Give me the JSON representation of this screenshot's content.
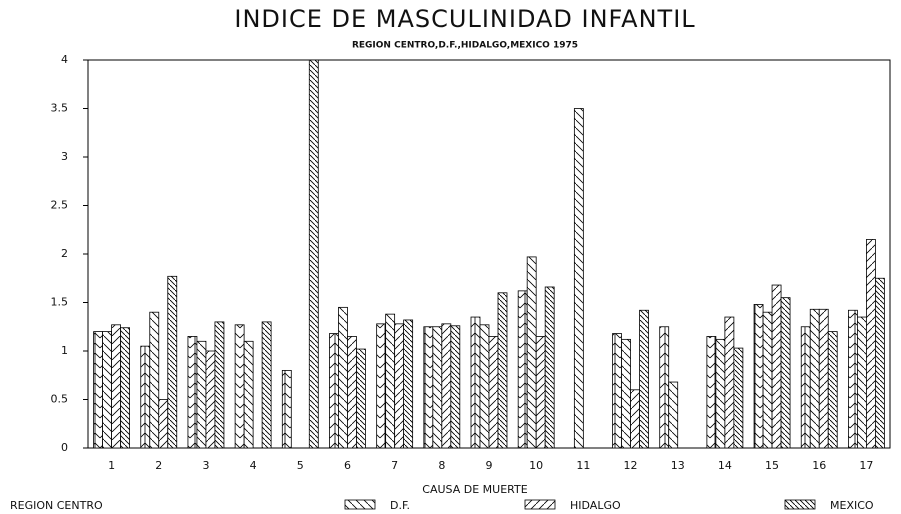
{
  "chart_data": {
    "type": "bar",
    "title": "INDICE DE MASCULINIDAD INFANTIL",
    "subtitle": "REGION CENTRO,D.F.,HIDALGO,MEXICO 1975",
    "x_label": "CAUSA DE MUERTE",
    "categories": [
      "1",
      "2",
      "3",
      "4",
      "5",
      "6",
      "7",
      "8",
      "9",
      "10",
      "11",
      "12",
      "13",
      "14",
      "15",
      "16",
      "17"
    ],
    "series": [
      {
        "name": "REGION CENTRO",
        "hatch": "herringbone",
        "values": [
          1.2,
          1.05,
          1.15,
          1.27,
          0.8,
          1.18,
          1.28,
          1.25,
          1.35,
          1.62,
          null,
          1.18,
          1.25,
          1.15,
          1.48,
          1.25,
          1.42
        ]
      },
      {
        "name": "D.F.",
        "hatch": "backslash",
        "values": [
          1.2,
          1.4,
          1.1,
          1.1,
          null,
          1.45,
          1.38,
          1.25,
          1.27,
          1.97,
          3.5,
          1.12,
          0.68,
          1.12,
          1.4,
          1.43,
          1.35
        ]
      },
      {
        "name": "HIDALGO",
        "hatch": "slash",
        "values": [
          1.27,
          0.5,
          1.0,
          null,
          null,
          1.15,
          1.28,
          1.28,
          1.15,
          1.15,
          null,
          0.6,
          null,
          1.35,
          1.68,
          1.43,
          2.15
        ]
      },
      {
        "name": "MEXICO",
        "hatch": "dense",
        "values": [
          1.24,
          1.77,
          1.3,
          1.3,
          4,
          1.02,
          1.32,
          1.26,
          1.6,
          1.66,
          null,
          1.42,
          null,
          1.03,
          1.55,
          1.2,
          1.75
        ]
      }
    ],
    "ylim": [
      0,
      4
    ],
    "yticks": [
      0,
      0.5,
      1,
      1.5,
      2,
      2.5,
      3,
      3.5,
      4
    ]
  }
}
